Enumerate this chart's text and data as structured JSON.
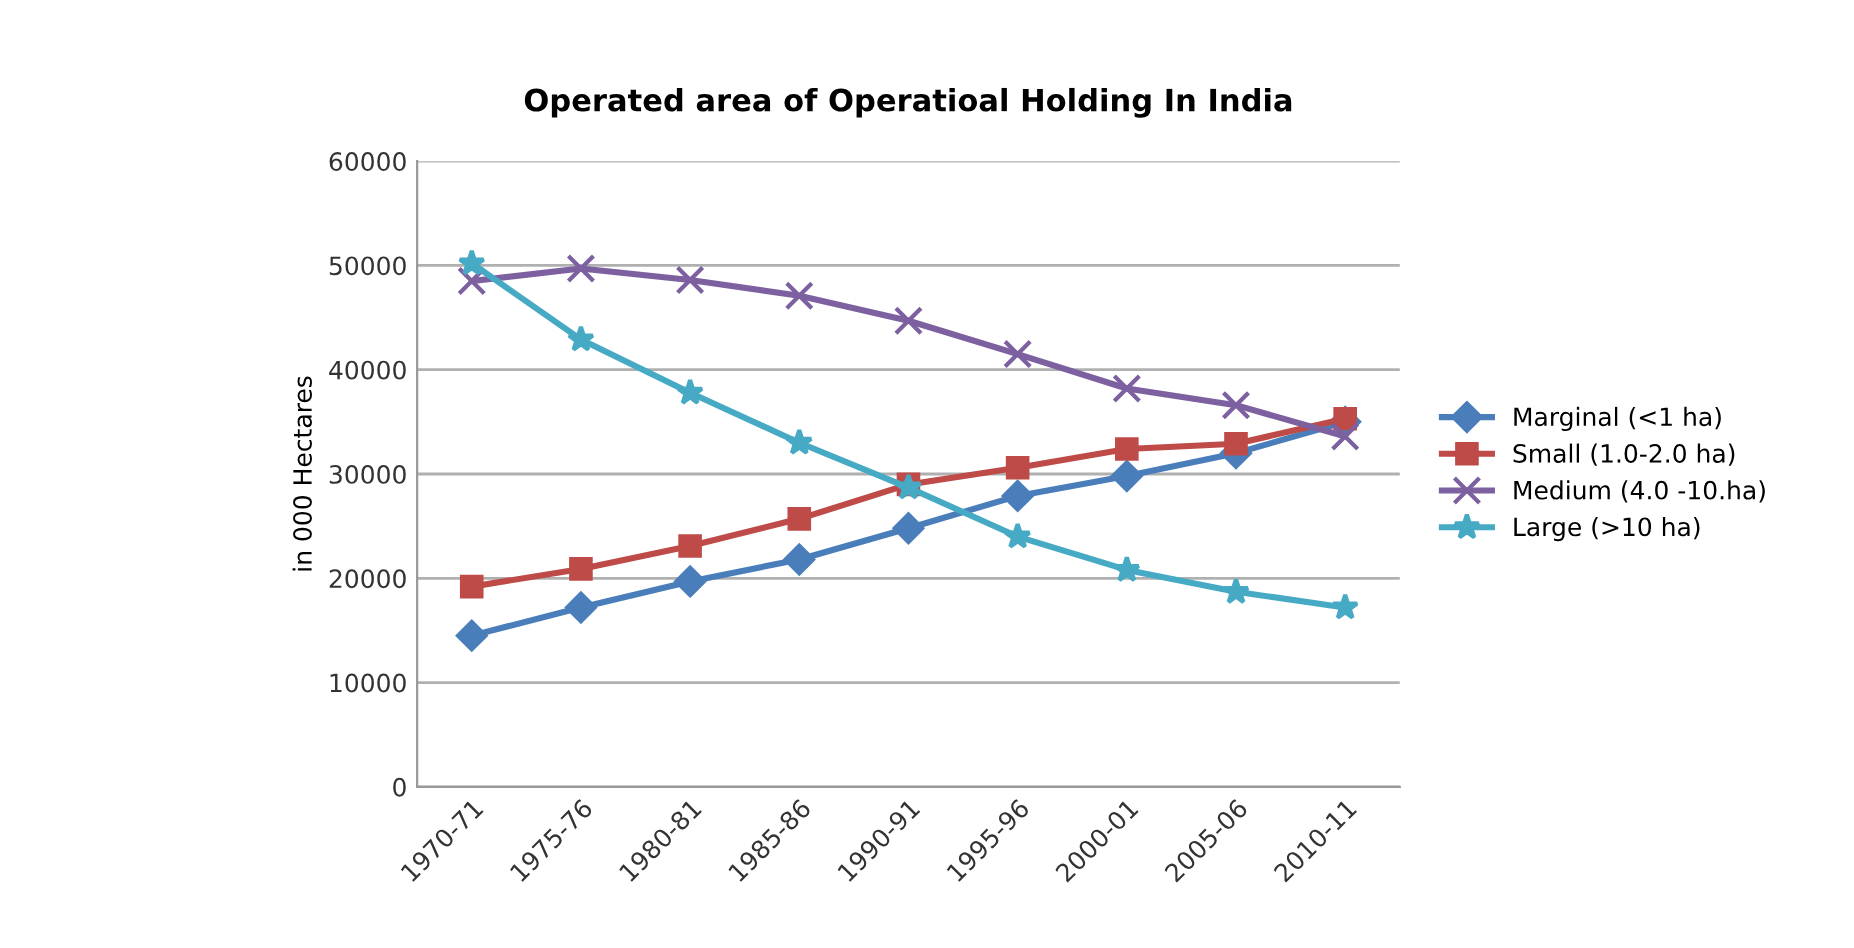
{
  "chart_data": {
    "type": "line",
    "title": "Operated area of Operatioal Holding In India",
    "ylabel": "in 000 Hectares",
    "categories": [
      "1970-71",
      "1975-76",
      "1980-81",
      "1985-86",
      "1990-91",
      "1995-96",
      "2000-01",
      "2005-06",
      "2010-11"
    ],
    "series": [
      {
        "name": "Marginal (<1 ha)",
        "color": "#4a7ebb",
        "marker": "diamond",
        "values": [
          14500,
          17200,
          19700,
          21800,
          24800,
          27900,
          29800,
          32000,
          35000
        ]
      },
      {
        "name": "Small (1.0-2.0 ha)",
        "color": "#be4b48",
        "marker": "square",
        "values": [
          19200,
          20900,
          23100,
          25700,
          29000,
          30600,
          32400,
          32900,
          35300
        ]
      },
      {
        "name": "Medium (4.0 -10.ha)",
        "color": "#7d60a0",
        "marker": "cross",
        "values": [
          48500,
          49700,
          48600,
          47100,
          44700,
          41500,
          38200,
          36600,
          33600
        ]
      },
      {
        "name": "Large (>10 ha)",
        "color": "#46aac5",
        "marker": "star",
        "values": [
          50200,
          42900,
          37800,
          33000,
          28700,
          24000,
          20800,
          18700,
          17200
        ]
      }
    ],
    "ylim": [
      0,
      60000
    ],
    "yticks": [
      0,
      10000,
      20000,
      30000,
      40000,
      50000,
      60000
    ],
    "grid": "y",
    "legend": "right"
  }
}
